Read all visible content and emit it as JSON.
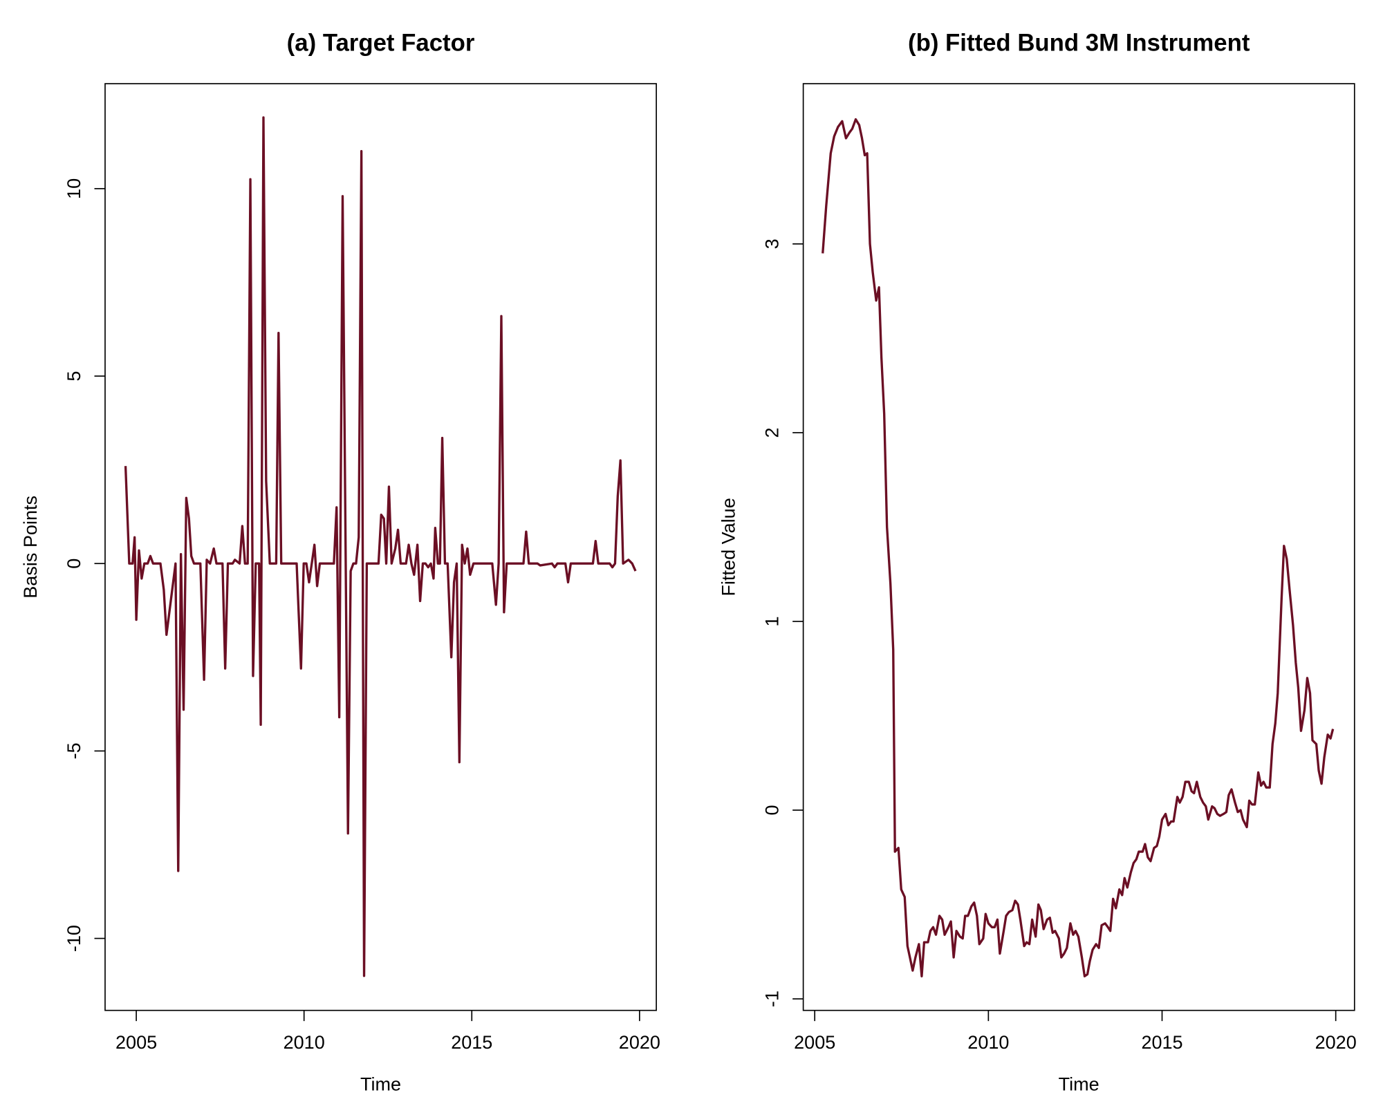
{
  "chart_data": [
    {
      "type": "line",
      "title": "(a) Target Factor",
      "xlabel": "Time",
      "ylabel": "Basis Points",
      "color": "#6b0f24",
      "xlim": [
        2004.07,
        2020.5
      ],
      "ylim": [
        -11.92,
        12.8
      ],
      "xticks": [
        2005,
        2010,
        2015,
        2020
      ],
      "yticks": [
        -10,
        -5,
        0,
        5,
        10
      ],
      "x": [
        2004.68,
        2004.79,
        2004.89,
        2004.95,
        2005.0,
        2005.08,
        2005.16,
        2005.24,
        2005.34,
        2005.42,
        2005.5,
        2005.72,
        2005.82,
        2005.9,
        2006.17,
        2006.25,
        2006.33,
        2006.41,
        2006.49,
        2006.57,
        2006.64,
        2006.72,
        2006.91,
        2007.02,
        2007.1,
        2007.2,
        2007.31,
        2007.39,
        2007.57,
        2007.65,
        2007.73,
        2007.87,
        2007.94,
        2008.08,
        2008.16,
        2008.24,
        2008.32,
        2008.4,
        2008.48,
        2008.56,
        2008.66,
        2008.71,
        2008.79,
        2008.87,
        2008.98,
        2009.17,
        2009.24,
        2009.32,
        2009.78,
        2009.83,
        2009.91,
        2009.99,
        2010.07,
        2010.15,
        2010.23,
        2010.31,
        2010.39,
        2010.47,
        2010.89,
        2010.97,
        2011.05,
        2011.15,
        2011.31,
        2011.39,
        2011.47,
        2011.55,
        2011.63,
        2011.71,
        2011.79,
        2011.87,
        2012.22,
        2012.3,
        2012.38,
        2012.45,
        2012.53,
        2012.61,
        2012.72,
        2012.8,
        2012.88,
        2013.04,
        2013.12,
        2013.2,
        2013.28,
        2013.38,
        2013.46,
        2013.54,
        2013.62,
        2013.7,
        2013.78,
        2013.86,
        2013.91,
        2013.99,
        2014.05,
        2014.12,
        2014.2,
        2014.28,
        2014.39,
        2014.47,
        2014.55,
        2014.63,
        2014.71,
        2014.79,
        2014.87,
        2014.95,
        2015.05,
        2015.61,
        2015.72,
        2015.8,
        2015.88,
        2015.96,
        2016.04,
        2016.54,
        2016.62,
        2016.7,
        2016.96,
        2017.04,
        2017.39,
        2017.47,
        2017.55,
        2017.79,
        2017.87,
        2017.95,
        2018.61,
        2018.69,
        2018.77,
        2019.11,
        2019.19,
        2019.27,
        2019.35,
        2019.43,
        2019.51,
        2019.67,
        2019.78,
        2019.88
      ],
      "values": [
        2.6,
        0,
        0,
        0.7,
        -1.5,
        0.35,
        -0.4,
        0,
        0,
        0.2,
        0,
        0,
        -0.7,
        -1.9,
        0,
        -8.2,
        0.25,
        -3.9,
        1.75,
        1.2,
        0.2,
        0,
        0,
        -3.1,
        0.1,
        0,
        0.4,
        0,
        0,
        -2.8,
        0,
        0,
        0.1,
        0,
        1.0,
        0,
        0,
        10.25,
        -3.0,
        0,
        0,
        -4.3,
        11.9,
        2.2,
        0,
        0,
        6.15,
        0,
        0,
        -1.1,
        -2.8,
        0,
        0,
        -0.5,
        0,
        0.5,
        -0.6,
        0,
        0,
        1.5,
        -4.1,
        9.8,
        -7.2,
        -0.2,
        0,
        0,
        0.7,
        11.0,
        -11.0,
        0,
        0,
        1.3,
        1.2,
        0,
        2.05,
        0,
        0.4,
        0.9,
        0,
        0,
        0.5,
        0,
        -0.3,
        0.5,
        -1.0,
        0,
        0,
        -0.1,
        0,
        -0.4,
        0.95,
        0,
        0,
        3.35,
        0,
        0,
        -2.5,
        -0.5,
        0,
        -5.3,
        0.5,
        0,
        0.4,
        -0.3,
        0,
        0,
        -1.1,
        0,
        6.6,
        -1.3,
        0,
        0,
        0.85,
        0,
        0,
        -0.05,
        0,
        -0.1,
        0,
        0,
        -0.5,
        0,
        0,
        0.6,
        0,
        0,
        -0.1,
        0,
        1.8,
        2.75,
        0,
        0.1,
        0,
        -0.2
      ]
    },
    {
      "type": "line",
      "title": "(b) Fitted Bund 3M Instrument",
      "xlabel": "Time",
      "ylabel": "Fitted Value",
      "color": "#6b0f24",
      "xlim": [
        2004.67,
        2020.54
      ],
      "ylim": [
        -1.061,
        3.849
      ],
      "xticks": [
        2005,
        2010,
        2015,
        2020
      ],
      "yticks": [
        -1,
        0,
        1,
        2,
        3
      ],
      "x": [
        2005.23,
        2005.33,
        2005.46,
        2005.56,
        2005.67,
        2005.79,
        2005.9,
        2006.0,
        2006.08,
        2006.18,
        2006.28,
        2006.36,
        2006.44,
        2006.51,
        2006.59,
        2006.67,
        2006.77,
        2006.85,
        2006.92,
        2007.0,
        2007.08,
        2007.18,
        2007.26,
        2007.31,
        2007.41,
        2007.49,
        2007.59,
        2007.67,
        2007.74,
        2007.82,
        2007.9,
        2008.0,
        2008.08,
        2008.15,
        2008.26,
        2008.33,
        2008.41,
        2008.49,
        2008.59,
        2008.67,
        2008.74,
        2008.85,
        2008.92,
        2009.0,
        2009.08,
        2009.18,
        2009.26,
        2009.33,
        2009.41,
        2009.51,
        2009.59,
        2009.67,
        2009.74,
        2009.85,
        2009.92,
        2010.0,
        2010.1,
        2010.18,
        2010.26,
        2010.33,
        2010.44,
        2010.51,
        2010.59,
        2010.69,
        2010.77,
        2010.85,
        2010.92,
        2011.03,
        2011.1,
        2011.18,
        2011.26,
        2011.36,
        2011.44,
        2011.51,
        2011.59,
        2011.69,
        2011.77,
        2011.85,
        2011.92,
        2012.03,
        2012.1,
        2012.18,
        2012.26,
        2012.36,
        2012.44,
        2012.51,
        2012.59,
        2012.69,
        2012.77,
        2012.85,
        2012.92,
        2013.0,
        2013.1,
        2013.18,
        2013.26,
        2013.36,
        2013.44,
        2013.51,
        2013.59,
        2013.67,
        2013.77,
        2013.85,
        2013.92,
        2014.0,
        2014.1,
        2014.18,
        2014.26,
        2014.33,
        2014.44,
        2014.51,
        2014.59,
        2014.67,
        2014.77,
        2014.85,
        2014.92,
        2015.0,
        2015.1,
        2015.18,
        2015.26,
        2015.33,
        2015.44,
        2015.51,
        2015.59,
        2015.67,
        2015.77,
        2015.85,
        2015.92,
        2016.0,
        2016.1,
        2016.18,
        2016.26,
        2016.33,
        2016.44,
        2016.51,
        2016.59,
        2016.67,
        2016.77,
        2016.85,
        2016.92,
        2017.0,
        2017.1,
        2017.18,
        2017.26,
        2017.33,
        2017.44,
        2017.51,
        2017.59,
        2017.67,
        2017.77,
        2017.85,
        2017.92,
        2018.0,
        2018.1,
        2018.18,
        2018.26,
        2018.33,
        2018.44,
        2018.51,
        2018.59,
        2018.67,
        2018.77,
        2018.85,
        2018.92,
        2019.0,
        2019.1,
        2019.18,
        2019.26,
        2019.33,
        2019.44,
        2019.51,
        2019.59,
        2019.67,
        2019.77,
        2019.85,
        2019.92
      ],
      "values": [
        2.95,
        3.2,
        3.48,
        3.57,
        3.62,
        3.65,
        3.56,
        3.59,
        3.61,
        3.66,
        3.63,
        3.56,
        3.47,
        3.48,
        3.0,
        2.85,
        2.7,
        2.77,
        2.4,
        2.1,
        1.5,
        1.2,
        0.85,
        -0.22,
        -0.2,
        -0.42,
        -0.46,
        -0.72,
        -0.78,
        -0.85,
        -0.78,
        -0.71,
        -0.88,
        -0.7,
        -0.7,
        -0.64,
        -0.62,
        -0.66,
        -0.56,
        -0.58,
        -0.66,
        -0.62,
        -0.59,
        -0.78,
        -0.64,
        -0.67,
        -0.68,
        -0.56,
        -0.56,
        -0.51,
        -0.49,
        -0.56,
        -0.71,
        -0.68,
        -0.55,
        -0.6,
        -0.62,
        -0.62,
        -0.58,
        -0.76,
        -0.64,
        -0.56,
        -0.54,
        -0.53,
        -0.48,
        -0.5,
        -0.58,
        -0.72,
        -0.7,
        -0.71,
        -0.58,
        -0.67,
        -0.5,
        -0.53,
        -0.63,
        -0.58,
        -0.57,
        -0.65,
        -0.64,
        -0.68,
        -0.78,
        -0.76,
        -0.73,
        -0.6,
        -0.66,
        -0.64,
        -0.67,
        -0.78,
        -0.88,
        -0.87,
        -0.8,
        -0.74,
        -0.71,
        -0.73,
        -0.61,
        -0.6,
        -0.62,
        -0.64,
        -0.47,
        -0.52,
        -0.42,
        -0.45,
        -0.36,
        -0.41,
        -0.33,
        -0.28,
        -0.26,
        -0.22,
        -0.22,
        -0.18,
        -0.25,
        -0.27,
        -0.2,
        -0.19,
        -0.14,
        -0.05,
        -0.02,
        -0.08,
        -0.06,
        -0.06,
        0.07,
        0.04,
        0.07,
        0.15,
        0.15,
        0.1,
        0.09,
        0.15,
        0.07,
        0.04,
        0.02,
        -0.05,
        0.02,
        0.01,
        -0.02,
        -0.03,
        -0.02,
        -0.01,
        0.08,
        0.11,
        0.04,
        -0.01,
        0.0,
        -0.05,
        -0.09,
        0.05,
        0.03,
        0.03,
        0.2,
        0.13,
        0.15,
        0.12,
        0.12,
        0.35,
        0.46,
        0.62,
        1.12,
        1.4,
        1.33,
        1.17,
        0.98,
        0.78,
        0.65,
        0.42,
        0.53,
        0.7,
        0.62,
        0.37,
        0.35,
        0.21,
        0.14,
        0.28,
        0.4,
        0.38,
        0.43
      ]
    }
  ]
}
